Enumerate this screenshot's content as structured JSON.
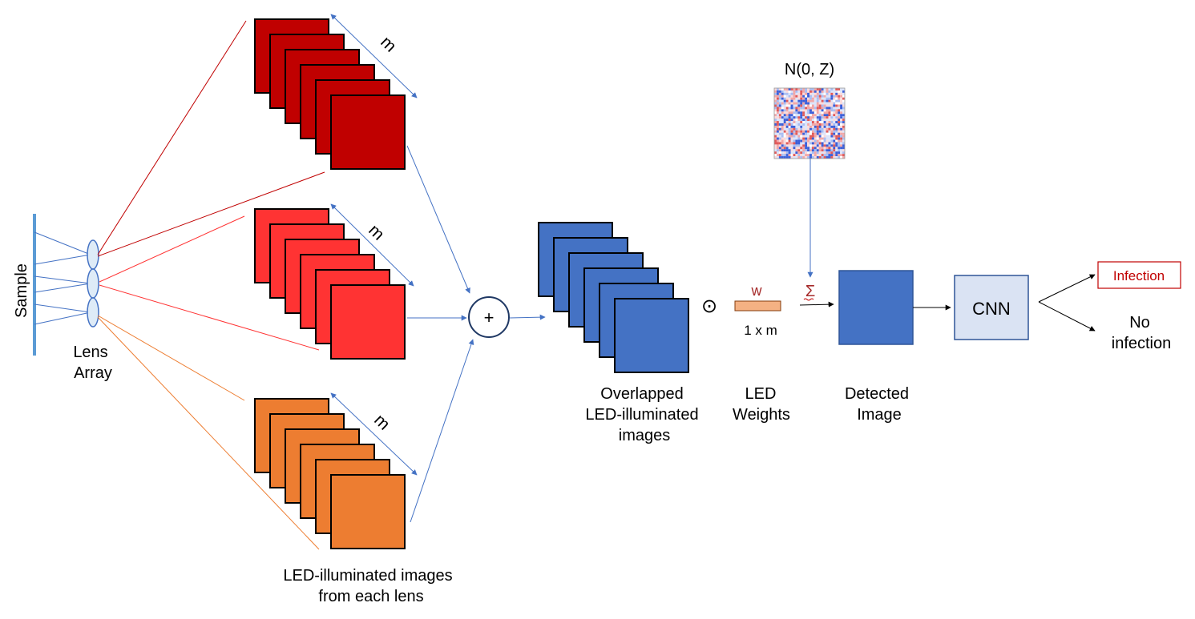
{
  "labels": {
    "sample": "Sample",
    "lens_line1": "Lens",
    "lens_line2": "Array",
    "stack_count": "m",
    "plus": "+",
    "dot_product": "⊙",
    "weight_symbol": "w",
    "weight_dims": "1 x m",
    "sum_symbol": "Σ",
    "noise": "N(0, Z)",
    "cnn": "CNN",
    "infection": "Infection",
    "no_infection_line1": "No",
    "no_infection_line2": "infection",
    "led_images_line1": "LED-illuminated images",
    "led_images_line2": "from each lens",
    "overlapped_line1": "Overlapped",
    "overlapped_line2": "LED-illuminated",
    "overlapped_line3": "images",
    "led_weights_line1": "LED",
    "led_weights_line2": "Weights",
    "detected_line1": "Detected",
    "detected_line2": "Image"
  },
  "colors": {
    "dark_red": "#C00000",
    "red": "#FF3333",
    "orange": "#ED7D31",
    "blue": "#4472C4",
    "arrow_blue": "#4472C4",
    "weight_fill": "#F4B183",
    "cnn_fill": "#DAE3F3",
    "sample_bar": "#5B9BD5",
    "lens_fill": "#DEEBF7",
    "infection_text": "#C00000",
    "sum_color": "#A52A2A"
  },
  "stacks": {
    "led_image_stack_layers": 6,
    "overlapped_stack_layers": 6
  }
}
